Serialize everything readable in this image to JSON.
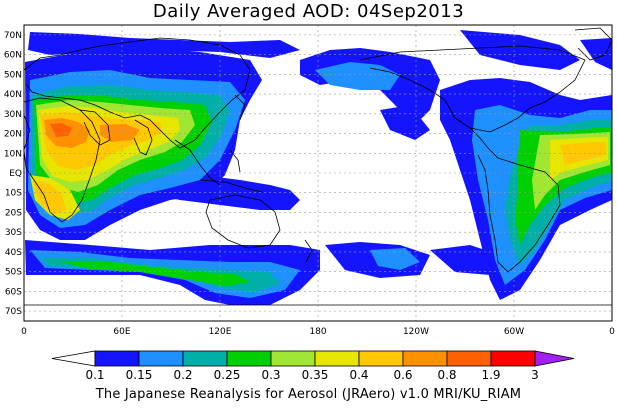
{
  "title": "Daily Averaged AOD: 04Sep2013",
  "footer": "The Japanese Reanalysis for Aerosol (JRAero) v1.0 MRI/KU_RIAM",
  "lat_labels": [
    "70N",
    "60N",
    "50N",
    "40N",
    "30N",
    "20N",
    "10N",
    "EQ",
    "10S",
    "20S",
    "30S",
    "40S",
    "50S",
    "60S",
    "70S"
  ],
  "lon_labels": [
    "0",
    "60E",
    "120E",
    "180",
    "120W",
    "60W",
    "0"
  ],
  "colorbar": {
    "levels": [
      "0.1",
      "0.15",
      "0.2",
      "0.25",
      "0.3",
      "0.35",
      "0.4",
      "0.6",
      "0.8",
      "1.9",
      "3"
    ],
    "colors": [
      "#ffffff",
      "#1414ff",
      "#1e90ff",
      "#00b0a8",
      "#00d000",
      "#a0e632",
      "#e6e600",
      "#ffc800",
      "#ff9000",
      "#ff6000",
      "#ff0000",
      "#a020f0"
    ]
  }
}
